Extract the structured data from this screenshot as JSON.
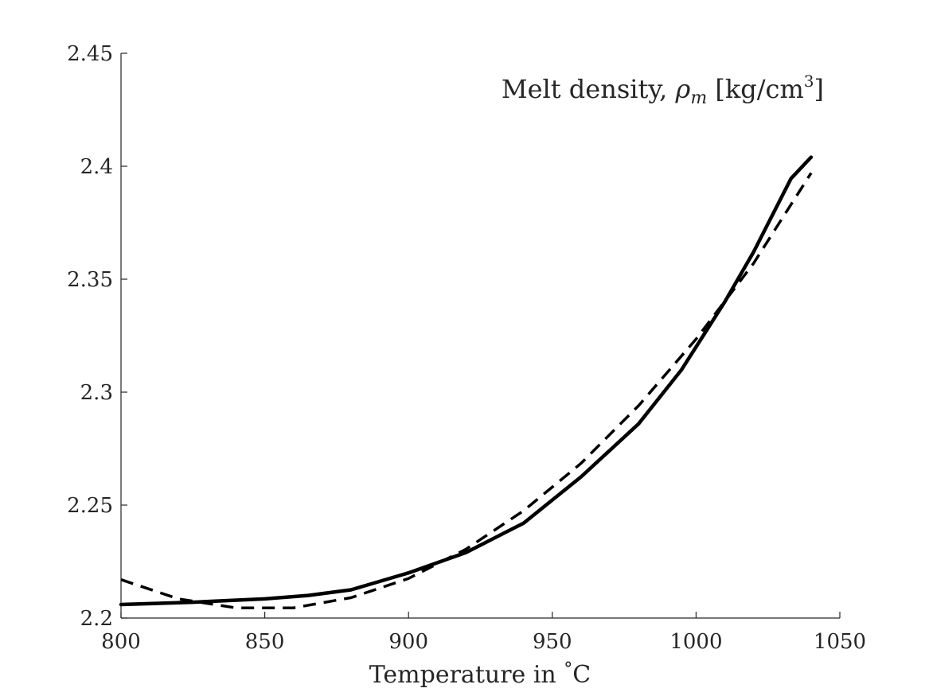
{
  "chart_data": {
    "type": "line",
    "title": "Melt density, ρ_m [kg/cm³]",
    "title_parts": {
      "main": "Melt density, ",
      "symbol": "ρ",
      "subscript": "m",
      "units_open": " [kg/cm",
      "units_sup": "3",
      "units_close": "]"
    },
    "xlabel": "Temperature in °C",
    "xlabel_parts": {
      "text": "Temperature in ",
      "degree": "°",
      "unit": "C"
    },
    "ylabel": "",
    "xlim": [
      800,
      1050
    ],
    "ylim": [
      2.2,
      2.45
    ],
    "x_ticks": [
      800,
      850,
      900,
      950,
      1000,
      1050
    ],
    "x_tick_labels": [
      "800",
      "850",
      "900",
      "950",
      "1000",
      "1050"
    ],
    "y_ticks": [
      2.2,
      2.25,
      2.3,
      2.35,
      2.4,
      2.45
    ],
    "y_tick_labels": [
      "2.2",
      "2.25",
      "2.3",
      "2.35",
      "2.4",
      "2.45"
    ],
    "grid": false,
    "series": [
      {
        "style": "solid",
        "color": "#000000",
        "x": [
          800,
          825,
          850,
          865,
          880,
          900,
          920,
          940,
          960,
          980,
          995,
          1010,
          1020,
          1033,
          1040
        ],
        "y": [
          2.206,
          2.207,
          2.2085,
          2.21,
          2.2125,
          2.22,
          2.229,
          2.242,
          2.2625,
          2.286,
          2.31,
          2.34,
          2.362,
          2.3945,
          2.404
        ]
      },
      {
        "style": "dashed",
        "color": "#000000",
        "x": [
          800,
          820,
          840,
          860,
          880,
          900,
          920,
          940,
          960,
          980,
          1000,
          1020,
          1040
        ],
        "y": [
          2.217,
          2.2085,
          2.2045,
          2.2045,
          2.209,
          2.2175,
          2.2305,
          2.2475,
          2.2685,
          2.294,
          2.3235,
          2.357,
          2.397
        ]
      }
    ]
  }
}
